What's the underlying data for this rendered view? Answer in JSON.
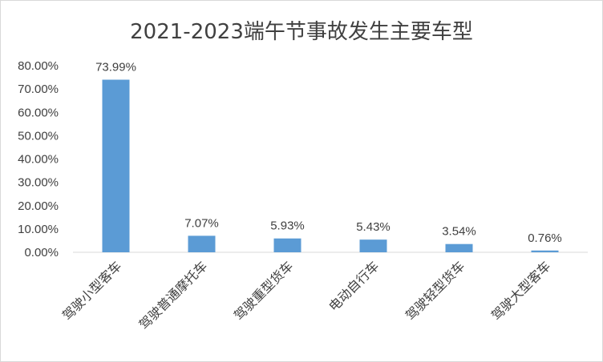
{
  "chart_data": {
    "type": "bar",
    "title": "2021-2023端午节事故发生主要车型",
    "categories": [
      "驾驶小型客车",
      "驾驶普通摩托车",
      "驾驶重型货车",
      "电动自行车",
      "驾驶轻型货车",
      "驾驶大型客车"
    ],
    "values": [
      73.99,
      7.07,
      5.93,
      5.43,
      3.54,
      0.76
    ],
    "value_labels": [
      "73.99%",
      "7.07%",
      "5.93%",
      "5.43%",
      "3.54%",
      "0.76%"
    ],
    "y_ticks": [
      "0.00%",
      "10.00%",
      "20.00%",
      "30.00%",
      "40.00%",
      "50.00%",
      "60.00%",
      "70.00%",
      "80.00%"
    ],
    "ylim": [
      0,
      80
    ],
    "xlabel": "",
    "ylabel": "",
    "grid": false,
    "legend": "none",
    "bar_color": "#5b9bd5"
  }
}
